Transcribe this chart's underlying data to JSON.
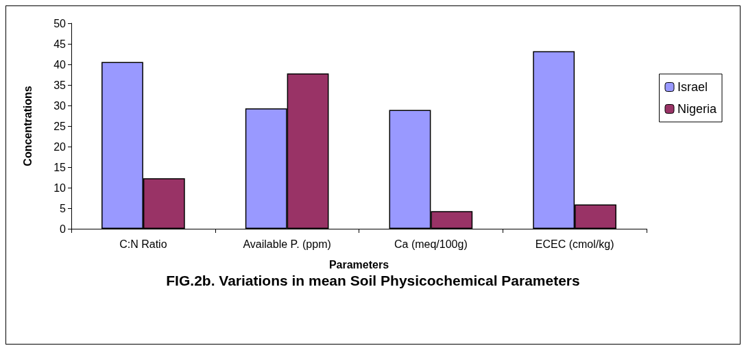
{
  "chart_data": {
    "type": "bar",
    "title": "FIG.2b. Variations in mean Soil Physicochemical Parameters",
    "xlabel": "Parameters",
    "ylabel": "Concentrations",
    "categories": [
      "C:N Ratio",
      "Available P. (ppm)",
      "Ca (meq/100g)",
      "ECEC (cmol/kg)"
    ],
    "series": [
      {
        "name": "Israel",
        "color": "#9999ff",
        "values": [
          40.6,
          29.3,
          28.9,
          43.2
        ]
      },
      {
        "name": "Nigeria",
        "color": "#993366",
        "values": [
          12.3,
          37.8,
          4.3,
          5.9
        ]
      }
    ],
    "ylim": [
      0,
      50
    ],
    "yticks": [
      0,
      5,
      10,
      15,
      20,
      25,
      30,
      35,
      40,
      45,
      50
    ],
    "grid": false,
    "legend": "right"
  }
}
